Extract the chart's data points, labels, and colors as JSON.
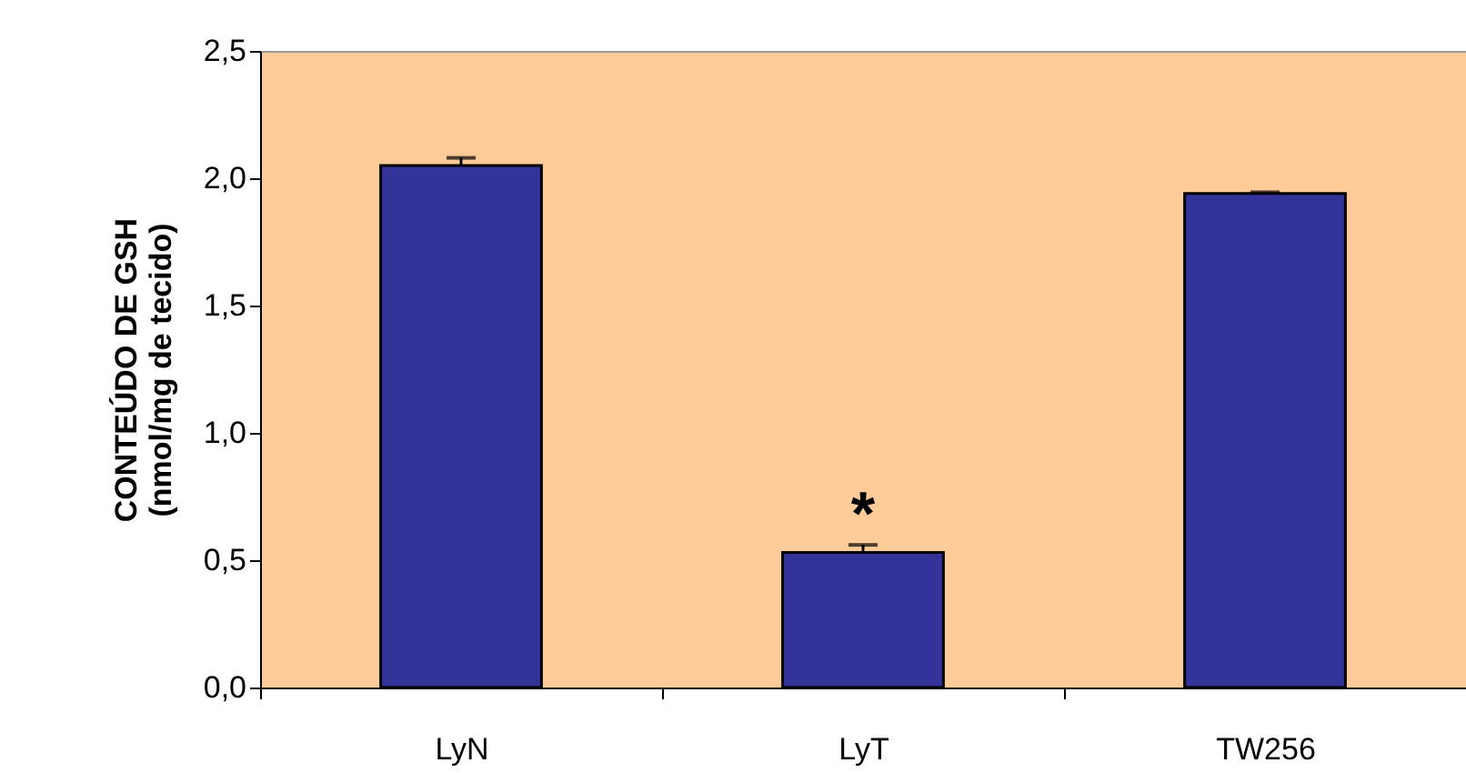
{
  "chart_data": {
    "type": "bar",
    "ylabel": "CONTEÚDO DE GSH\n(nmol/mg de tecido)",
    "categories": [
      "LyN",
      "LyT",
      "TW256"
    ],
    "series": [
      {
        "color": "#333399",
        "values": [
          2.05,
          0.53,
          1.94
        ],
        "errors": [
          0.03,
          0.03,
          0.005
        ]
      }
    ],
    "ylim": [
      0,
      2.5
    ],
    "yticks": [
      {
        "value": 0,
        "label": "0,0"
      },
      {
        "value": 0.5,
        "label": "0,5"
      },
      {
        "value": 1,
        "label": "1,0"
      },
      {
        "value": 1.5,
        "label": "1,5"
      },
      {
        "value": 2,
        "label": "2,0"
      },
      {
        "value": 2.5,
        "label": "2,5"
      }
    ],
    "grid": false,
    "annotations": [
      "*"
    ]
  }
}
